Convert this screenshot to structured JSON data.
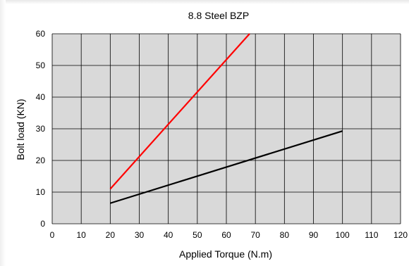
{
  "chart_data": {
    "type": "line",
    "title": "8.8 Steel BZP",
    "xlabel": "Applied Torque (N.m)",
    "ylabel": "Bolt load (KN)",
    "xlim": [
      0,
      120
    ],
    "ylim": [
      0,
      60
    ],
    "x_ticks": [
      "0",
      "10",
      "20",
      "30",
      "40",
      "50",
      "60",
      "70",
      "80",
      "90",
      "100",
      "110",
      "120"
    ],
    "y_ticks": [
      "0",
      "10",
      "20",
      "30",
      "40",
      "50",
      "60"
    ],
    "grid": true,
    "legend": "none",
    "plot_background": "#d9d9d9",
    "series": [
      {
        "color": "#ff0000",
        "x": [
          20,
          68
        ],
        "y": [
          11,
          60
        ]
      },
      {
        "color": "#000000",
        "x": [
          20,
          100
        ],
        "y": [
          6.5,
          29.3
        ]
      }
    ]
  }
}
